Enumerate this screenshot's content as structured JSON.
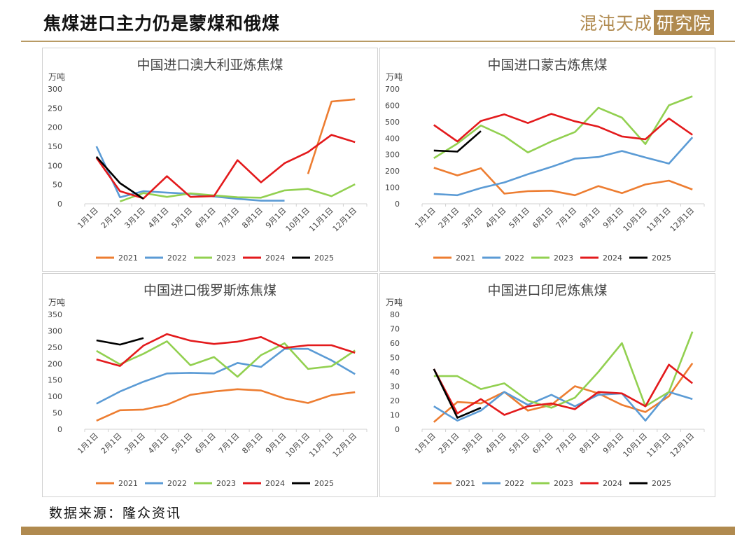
{
  "header": {
    "title": "焦煤进口主力仍是蒙煤和俄煤"
  },
  "brand": {
    "name": "混沌天成",
    "suffix": "研究院",
    "color": "#b08a4f"
  },
  "footer": {
    "source": "数据来源：隆众资讯"
  },
  "series_colors": {
    "2021": "#ed7d31",
    "2022": "#5b9bd5",
    "2023": "#92d050",
    "2024": "#e31a1c",
    "2025": "#000000"
  },
  "chart_data": [
    {
      "type": "line",
      "title": "中国进口澳大利亚炼焦煤",
      "unit": "万吨",
      "ylim": [
        0,
        300
      ],
      "ystep": 50,
      "categories": [
        "1月1日",
        "2月1日",
        "3月1日",
        "4月1日",
        "5月1日",
        "6月1日",
        "7月1日",
        "8月1日",
        "9月1日",
        "10月1日",
        "11月1日",
        "12月1日"
      ],
      "legend_position": "bottom",
      "series": [
        {
          "name": "2021",
          "values": [
            null,
            null,
            null,
            null,
            null,
            null,
            null,
            null,
            null,
            78,
            267,
            273
          ]
        },
        {
          "name": "2022",
          "values": [
            150,
            17,
            33,
            29,
            26,
            19,
            13,
            8,
            8,
            null,
            null,
            null
          ]
        },
        {
          "name": "2023",
          "values": [
            null,
            6,
            28,
            18,
            27,
            22,
            17,
            16,
            35,
            39,
            20,
            51
          ]
        },
        {
          "name": "2024",
          "values": [
            120,
            33,
            14,
            72,
            18,
            20,
            114,
            56,
            106,
            135,
            180,
            161
          ]
        },
        {
          "name": "2025",
          "values": [
            123,
            54,
            13,
            null,
            null,
            null,
            null,
            null,
            null,
            null,
            null,
            null
          ]
        }
      ]
    },
    {
      "type": "line",
      "title": "中国进口蒙古炼焦煤",
      "unit": "万吨",
      "ylim": [
        0,
        700
      ],
      "ystep": 100,
      "categories": [
        "1月1日",
        "2月1日",
        "3月1日",
        "4月1日",
        "5月1日",
        "6月1日",
        "7月1日",
        "8月1日",
        "9月1日",
        "10月1日",
        "11月1日",
        "12月1日"
      ],
      "legend_position": "bottom",
      "series": [
        {
          "name": "2021",
          "values": [
            220,
            173,
            217,
            62,
            77,
            80,
            52,
            108,
            65,
            118,
            141,
            87
          ]
        },
        {
          "name": "2022",
          "values": [
            60,
            52,
            96,
            130,
            180,
            225,
            275,
            285,
            322,
            282,
            245,
            405
          ]
        },
        {
          "name": "2023",
          "values": [
            278,
            367,
            477,
            412,
            313,
            380,
            437,
            585,
            525,
            364,
            600,
            655
          ]
        },
        {
          "name": "2024",
          "values": [
            480,
            380,
            505,
            545,
            492,
            548,
            503,
            470,
            410,
            393,
            520,
            420
          ]
        },
        {
          "name": "2025",
          "values": [
            325,
            318,
            443,
            null,
            null,
            null,
            null,
            null,
            null,
            null,
            null,
            null
          ]
        }
      ]
    },
    {
      "type": "line",
      "title": "中国进口俄罗斯炼焦煤",
      "unit": "万吨",
      "ylim": [
        0,
        350
      ],
      "ystep": 50,
      "categories": [
        "1月1日",
        "2月1日",
        "3月1日",
        "4月1日",
        "5月1日",
        "6月1日",
        "7月1日",
        "8月1日",
        "9月1日",
        "10月1日",
        "11月1日",
        "12月1日"
      ],
      "legend_position": "bottom",
      "series": [
        {
          "name": "2021",
          "values": [
            26,
            58,
            60,
            75,
            105,
            115,
            122,
            118,
            94,
            80,
            104,
            113
          ]
        },
        {
          "name": "2022",
          "values": [
            78,
            115,
            145,
            170,
            172,
            170,
            202,
            190,
            245,
            245,
            210,
            168
          ]
        },
        {
          "name": "2023",
          "values": [
            239,
            198,
            230,
            268,
            195,
            220,
            160,
            226,
            262,
            184,
            192,
            240
          ]
        },
        {
          "name": "2024",
          "values": [
            213,
            193,
            255,
            290,
            270,
            260,
            267,
            281,
            248,
            256,
            256,
            233
          ]
        },
        {
          "name": "2025",
          "values": [
            271,
            258,
            278,
            null,
            null,
            null,
            null,
            null,
            null,
            null,
            null,
            null
          ]
        }
      ]
    },
    {
      "type": "line",
      "title": "中国进口印尼炼焦煤",
      "unit": "万吨",
      "ylim": [
        0,
        80
      ],
      "ystep": 10,
      "categories": [
        "1月1日",
        "2月1日",
        "3月1日",
        "4月1日",
        "5月1日",
        "6月1日",
        "7月1日",
        "8月1日",
        "9月1日",
        "10月1日",
        "11月1日",
        "12月1日"
      ],
      "legend_position": "bottom",
      "series": [
        {
          "name": "2021",
          "values": [
            5,
            19,
            18,
            26,
            13,
            17,
            30,
            25,
            17,
            12,
            23,
            46
          ]
        },
        {
          "name": "2022",
          "values": [
            16,
            6,
            13,
            26,
            17,
            24,
            16,
            24,
            25,
            6,
            26,
            21
          ]
        },
        {
          "name": "2023",
          "values": [
            37,
            37,
            28,
            32,
            20,
            15,
            22,
            40,
            60,
            16,
            26,
            68
          ]
        },
        {
          "name": "2024",
          "values": [
            42,
            11,
            21,
            10,
            16,
            18,
            14,
            26,
            25,
            16,
            45,
            32
          ]
        },
        {
          "name": "2025",
          "values": [
            42,
            8,
            15,
            null,
            null,
            null,
            null,
            null,
            null,
            null,
            null,
            null
          ]
        }
      ]
    }
  ]
}
